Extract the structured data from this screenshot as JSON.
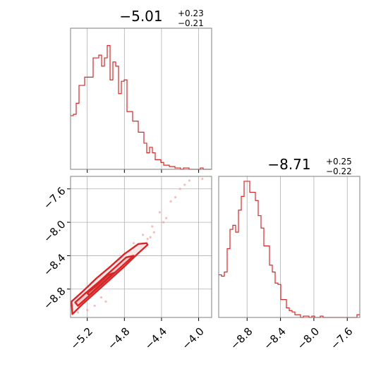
{
  "chart_data": [
    {
      "type": "histogram",
      "title": {
        "base": "−5.01",
        "sup": "+0.23",
        "sub": "−0.21"
      },
      "x_ticks": [
        -5.2,
        -4.8,
        -4.4,
        -4.0
      ],
      "xlim": [
        -5.38,
        -3.86
      ],
      "grid": true,
      "color": "#d62728",
      "bin_edges_start": -5.38,
      "bin_width": 0.0304,
      "counts": [
        0.39,
        0.4,
        0.48,
        0.61,
        0.61,
        0.67,
        0.67,
        0.67,
        0.81,
        0.81,
        0.83,
        0.75,
        0.81,
        0.9,
        0.65,
        0.78,
        0.75,
        0.55,
        0.64,
        0.65,
        0.42,
        0.42,
        0.35,
        0.35,
        0.27,
        0.27,
        0.19,
        0.12,
        0.16,
        0.12,
        0.07,
        0.07,
        0.05,
        0.03,
        0.03,
        0.02,
        0.02,
        0.01,
        0.01,
        0.0,
        0.01,
        0.01,
        0.0,
        0.0,
        0.0,
        0.0,
        0.01,
        0.0,
        0.0,
        0.0
      ]
    },
    {
      "type": "histogram",
      "title": {
        "base": "−8.71",
        "sup": "+0.25",
        "sub": "−0.22"
      },
      "x_ticks": [
        -8.8,
        -8.4,
        -8.0,
        -7.6
      ],
      "x_tick_labels": [
        "−8.8",
        "−8.4",
        "−8.0",
        "−7.6"
      ],
      "xlim": [
        -9.14,
        -7.45
      ],
      "grid": true,
      "color": "#d62728",
      "bin_edges_start": -9.14,
      "bin_width": 0.0338,
      "counts": [
        0.31,
        0.3,
        0.33,
        0.5,
        0.64,
        0.67,
        0.62,
        0.78,
        0.88,
        0.99,
        0.99,
        0.91,
        0.91,
        0.85,
        0.74,
        0.65,
        0.52,
        0.52,
        0.38,
        0.33,
        0.25,
        0.24,
        0.13,
        0.13,
        0.07,
        0.05,
        0.04,
        0.02,
        0.02,
        0.0,
        0.01,
        0.01,
        0.0,
        0.01,
        0.0,
        0.0,
        0.01,
        0.0,
        0.0,
        0.0,
        0.0,
        0.0,
        0.0,
        0.0,
        0.0,
        0.0,
        0.0,
        0.0,
        0.0,
        0.02
      ]
    },
    {
      "type": "scatter",
      "subtype": "2d-density-contour",
      "x_ticks": [
        -5.2,
        -4.8,
        -4.4,
        -4.0
      ],
      "x_tick_labels": [
        "−5.2",
        "−4.8",
        "−4.4",
        "−4.0"
      ],
      "y_ticks": [
        -7.6,
        -8.0,
        -8.4,
        -8.8
      ],
      "y_tick_labels": [
        "−7.6",
        "−8.0",
        "−8.4",
        "−8.8"
      ],
      "xlim": [
        -5.38,
        -3.86
      ],
      "ylim": [
        -9.14,
        -7.45
      ],
      "grid": true,
      "color": "#d62728",
      "contour_levels": [
        [
          [
            -5.36,
            -9.1
          ],
          [
            -5.25,
            -8.98
          ],
          [
            -5.1,
            -8.83
          ],
          [
            -4.95,
            -8.68
          ],
          [
            -4.8,
            -8.53
          ],
          [
            -4.65,
            -8.37
          ],
          [
            -4.55,
            -8.27
          ],
          [
            -4.56,
            -8.25
          ],
          [
            -4.65,
            -8.26
          ],
          [
            -4.8,
            -8.38
          ],
          [
            -4.95,
            -8.53
          ],
          [
            -5.1,
            -8.67
          ],
          [
            -5.25,
            -8.83
          ],
          [
            -5.37,
            -8.95
          ]
        ],
        [
          [
            -5.3,
            -9.0
          ],
          [
            -5.15,
            -8.85
          ],
          [
            -5.0,
            -8.7
          ],
          [
            -4.85,
            -8.55
          ],
          [
            -4.72,
            -8.42
          ],
          [
            -4.7,
            -8.4
          ],
          [
            -4.78,
            -8.42
          ],
          [
            -4.92,
            -8.56
          ],
          [
            -5.07,
            -8.71
          ],
          [
            -5.22,
            -8.85
          ],
          [
            -5.33,
            -8.96
          ]
        ],
        [
          [
            -5.18,
            -8.87
          ],
          [
            -5.05,
            -8.74
          ],
          [
            -4.93,
            -8.62
          ],
          [
            -4.9,
            -8.6
          ],
          [
            -4.97,
            -8.63
          ],
          [
            -5.1,
            -8.76
          ],
          [
            -5.2,
            -8.85
          ]
        ]
      ],
      "scatter_points": [
        [
          -4.3,
          -7.75
        ],
        [
          -4.2,
          -7.6
        ],
        [
          -4.1,
          -7.5
        ],
        [
          -3.96,
          -7.48
        ],
        [
          -4.35,
          -7.95
        ],
        [
          -4.42,
          -7.88
        ],
        [
          -4.5,
          -8.05
        ],
        [
          -4.6,
          -8.15
        ],
        [
          -4.55,
          -8.2
        ],
        [
          -4.7,
          -8.25
        ],
        [
          -4.48,
          -8.12
        ],
        [
          -4.38,
          -8.0
        ],
        [
          -5.05,
          -8.9
        ],
        [
          -5.2,
          -9.05
        ],
        [
          -5.3,
          -9.08
        ],
        [
          -4.9,
          -8.55
        ],
        [
          -4.75,
          -8.45
        ],
        [
          -4.62,
          -8.3
        ],
        [
          -4.25,
          -7.7
        ],
        [
          -4.15,
          -7.55
        ],
        [
          -5.0,
          -8.95
        ],
        [
          -5.12,
          -9.0
        ],
        [
          -4.68,
          -8.4
        ],
        [
          -4.52,
          -8.18
        ]
      ]
    }
  ]
}
